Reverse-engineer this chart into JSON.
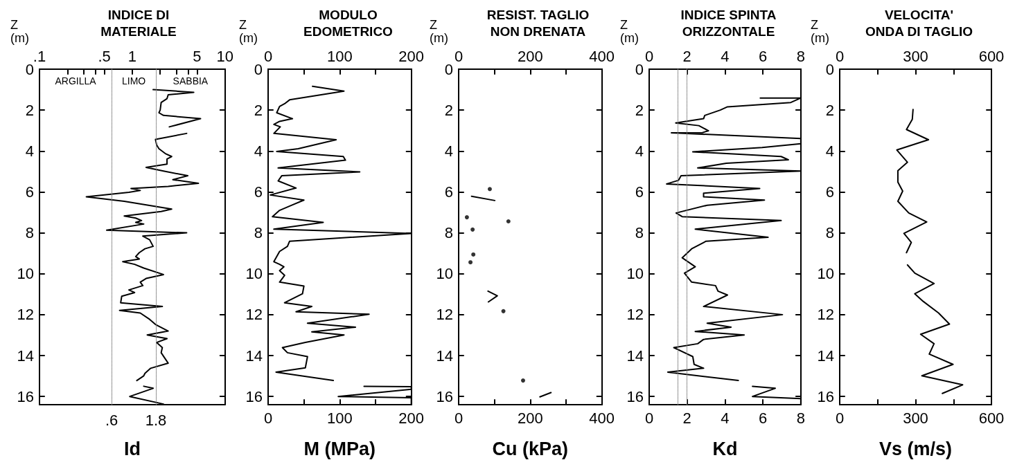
{
  "chart_data": [
    {
      "type": "line",
      "title": "INDICE DI\nMATERIALE",
      "xlabel": "Id",
      "ylabel": "Z\n(m)",
      "log": "x",
      "line_style": "solid",
      "marker": "none",
      "xlim": [
        0.1,
        10
      ],
      "xticks": [
        {
          "value": 0.1,
          "label": ".1"
        },
        {
          "value": 0.2,
          "label": null
        },
        {
          "value": 0.3,
          "label": null
        },
        {
          "value": 0.4,
          "label": null
        },
        {
          "value": 0.5,
          "label": ".5"
        },
        1,
        {
          "value": 2,
          "label": null
        },
        {
          "value": 3,
          "label": null
        },
        {
          "value": 4,
          "label": null
        },
        5,
        10
      ],
      "ylim": [
        16.4,
        0
      ],
      "yticks": [
        0,
        2,
        4,
        6,
        8,
        10,
        12,
        14,
        16
      ],
      "ref_lines": [
        {
          "axis": "x",
          "value": 0.6,
          "label": ".6",
          "color": "#808080",
          "line_style": "dotted"
        },
        {
          "axis": "x",
          "value": 1.8,
          "label": "1.8",
          "color": "#808080",
          "line_style": "dotted"
        }
      ],
      "annotations": [
        "ARGILLA",
        "LIMO",
        "SABBIA"
      ],
      "series": [
        {
          "color": "#000000",
          "x": [
            1.68,
            4.6,
            2.44,
            2.37,
            2.05,
            2.0,
            1.94,
            2.17,
            5.45,
            2.51,
            null,
            3.86,
            1.78,
            1.83,
            1.94,
            2.3,
            2.66,
            2.37,
            2.37,
            1.41,
            2.17,
            3.97,
            2.74,
            5.17,
            2.44,
            0.97,
            1.22,
            0.92,
            0.32,
            0.82,
            2.66,
            2.05,
            0.82,
            1.09,
            1.26,
            1.09,
            1.33,
            0.53,
            3.86,
            1.3,
            1.54,
            1.68,
            1.37,
            1.19,
            1.09,
            1.19,
            0.79,
            1.06,
            1.33,
            2.17,
            1.41,
            1.22,
            1.3,
            0.92,
            1.06,
            0.77,
            0.75,
            2.11,
            0.73,
            1.22,
            1.54,
            1.78,
            2.44,
            1.45,
            2.37,
            1.83,
            2.11,
            2.05,
            2.24,
            2.44,
            1.58,
            1.37,
            1.33,
            1.12,
            null,
            1.33,
            1.68,
            0.94,
            2.17
          ],
          "values": [
            1.0,
            1.13,
            1.25,
            1.44,
            1.63,
            2.0,
            2.13,
            2.26,
            2.42,
            2.82,
            null,
            3.14,
            3.43,
            3.7,
            3.89,
            4.14,
            4.27,
            4.39,
            4.64,
            4.8,
            4.98,
            5.21,
            5.4,
            5.58,
            5.73,
            5.83,
            5.93,
            6.02,
            6.24,
            6.46,
            6.84,
            6.96,
            7.18,
            7.28,
            7.4,
            7.49,
            7.57,
            7.87,
            8.0,
            8.16,
            8.34,
            8.66,
            8.78,
            8.97,
            9.16,
            9.28,
            9.41,
            9.54,
            9.72,
            10.04,
            10.23,
            10.41,
            10.58,
            10.79,
            10.92,
            11.1,
            11.42,
            11.6,
            11.79,
            11.92,
            12.23,
            12.48,
            12.8,
            12.99,
            13.17,
            13.36,
            13.61,
            13.86,
            14.12,
            14.37,
            14.62,
            14.87,
            14.99,
            15.22,
            null,
            15.5,
            15.6,
            16.0,
            16.37
          ]
        }
      ]
    },
    {
      "type": "line",
      "title": "MODULO\nEDOMETRICO",
      "xlabel": "M (MPa)",
      "ylabel": "Z\n(m)",
      "line_style": "solid",
      "marker": "none",
      "xlim": [
        0,
        200
      ],
      "xticks": [
        0,
        {
          "value": 50,
          "label": null
        },
        100,
        {
          "value": 150,
          "label": null
        },
        200
      ],
      "x2lim": [
        0,
        200
      ],
      "x2ticks": [
        0,
        {
          "value": 50,
          "label": null
        },
        100,
        {
          "value": 150,
          "label": null
        },
        200
      ],
      "ylim": [
        16.4,
        0
      ],
      "yticks": [
        0,
        2,
        4,
        6,
        8,
        10,
        12,
        14,
        16
      ],
      "series": [
        {
          "color": "#000000",
          "x": [
            62,
            106,
            30,
            23,
            16,
            12,
            34,
            16,
            8,
            17,
            8,
            95,
            42,
            12,
            105,
            108,
            14,
            128,
            19,
            14,
            39,
            3,
            50,
            33,
            16,
            6,
            77,
            8,
            200,
            30,
            27,
            16,
            8,
            16,
            22,
            16,
            23,
            16,
            50,
            48,
            23,
            61,
            39,
            141,
            55,
            122,
            61,
            106,
            52,
            20,
            27,
            55,
            52,
            11,
            91,
            null,
            134,
            200,
            200,
            98,
            200,
            200
          ],
          "values": [
            0.84,
            1.07,
            1.5,
            1.69,
            1.82,
            2.13,
            2.42,
            2.55,
            2.7,
            2.82,
            3.14,
            3.45,
            3.89,
            4.02,
            4.27,
            4.45,
            4.83,
            5.02,
            5.21,
            5.46,
            5.81,
            6.15,
            6.4,
            6.65,
            6.9,
            7.21,
            7.49,
            7.82,
            8.03,
            8.41,
            8.66,
            8.91,
            9.41,
            9.54,
            9.66,
            9.85,
            10.08,
            10.41,
            10.6,
            10.98,
            11.42,
            11.6,
            11.86,
            11.98,
            12.42,
            12.61,
            12.84,
            12.99,
            13.36,
            13.61,
            13.86,
            14.05,
            14.6,
            14.81,
            15.22,
            null,
            15.5,
            15.52,
            15.65,
            16.0,
            16.06,
            16.37
          ]
        }
      ]
    },
    {
      "type": "line",
      "title": "RESIST. TAGLIO\nNON DRENATA",
      "xlabel": "Cu (kPa)",
      "ylabel": "Z\n(m)",
      "line_style": "solid",
      "marker": "none",
      "xlim": [
        0,
        400
      ],
      "xticks": [
        0,
        {
          "value": 100,
          "label": null
        },
        200,
        {
          "value": 300,
          "label": null
        },
        400
      ],
      "x2lim": [
        0,
        400
      ],
      "x2ticks": [
        0,
        {
          "value": 100,
          "label": null
        },
        200,
        {
          "value": 300,
          "label": null
        },
        400
      ],
      "ylim": [
        16.4,
        0
      ],
      "yticks": [
        0,
        2,
        4,
        6,
        8,
        10,
        12,
        14,
        16
      ],
      "series": [
        {
          "type": "scatter",
          "marker": "circle",
          "color": "#000000",
          "x": [
            87,
            23,
            139,
            39,
            41,
            33,
            125,
            180
          ],
          "values": [
            5.86,
            7.24,
            7.44,
            7.84,
            9.06,
            9.44,
            11.83,
            15.22
          ]
        },
        {
          "color": "#000000",
          "x": [
            36,
            101,
            null,
            82,
            108,
            83,
            null,
            227,
            258
          ],
          "values": [
            6.21,
            6.42,
            null,
            10.85,
            11.08,
            11.38,
            null,
            16.02,
            15.81
          ]
        }
      ]
    },
    {
      "type": "line",
      "title": "INDICE SPINTA\nORIZZONTALE",
      "xlabel": "Kd",
      "ylabel": "Z\n(m)",
      "line_style": "solid",
      "marker": "none",
      "xlim": [
        0,
        8
      ],
      "xticks": [
        0,
        2,
        4,
        6,
        8
      ],
      "x2lim": [
        0,
        8
      ],
      "x2ticks": [
        0,
        2,
        4,
        6,
        8
      ],
      "ylim": [
        16.4,
        0
      ],
      "yticks": [
        0,
        2,
        4,
        6,
        8,
        10,
        12,
        14,
        16
      ],
      "ref_lines": [
        {
          "axis": "x",
          "value": 1.5,
          "color": "#808080",
          "line_style": "dotted"
        },
        {
          "axis": "x",
          "value": 2,
          "color": "#808080",
          "line_style": "dotted"
        }
      ],
      "series": [
        {
          "color": "#000000",
          "x": [
            5.86,
            8,
            7.47,
            4.13,
            3.75,
            2.93,
            2.87,
            1.4,
            2.62,
            3.13,
            2.81,
            1.17,
            8,
            8,
            5.96,
            2.3,
            6.96,
            7.34,
            4.07,
            2.56,
            8,
            1.68,
            1.55,
            0.92,
            5.83,
            2.87,
            2.87,
            6.08,
            3.06,
            1.42,
            1.74,
            6.96,
            2.43,
            6.27,
            3.0,
            2.24,
            1.74,
            2.43,
            1.86,
            2.24,
            3.5,
            3.63,
            4.13,
            2.87,
            7.03,
            3.06,
            4.32,
            2.43,
            5.01,
            2.87,
            2.56,
            1.3,
            2.3,
            2.37,
            2.87,
            0.98,
            4.7,
            null,
            5.45,
            6.65,
            5.45,
            8,
            8
          ],
          "values": [
            1.41,
            1.41,
            1.63,
            1.84,
            2.0,
            2.26,
            2.42,
            2.63,
            2.76,
            3.01,
            3.1,
            3.11,
            3.39,
            3.64,
            3.83,
            4.04,
            4.27,
            4.43,
            4.6,
            4.83,
            4.98,
            5.21,
            5.43,
            5.61,
            5.83,
            6.06,
            6.24,
            6.4,
            6.65,
            7.03,
            7.21,
            7.4,
            7.82,
            8.22,
            8.41,
            8.78,
            9.22,
            9.66,
            9.97,
            10.41,
            10.58,
            10.85,
            11.04,
            11.6,
            12.0,
            12.42,
            12.61,
            12.82,
            12.99,
            13.21,
            13.42,
            13.61,
            14.05,
            14.43,
            14.62,
            14.81,
            15.22,
            null,
            15.5,
            15.6,
            16.0,
            16.1,
            16.37
          ]
        }
      ]
    },
    {
      "type": "line",
      "title": "VELOCITA'\nONDA DI TAGLIO",
      "xlabel": "Vs (m/s)",
      "ylabel": "Z\n(m)",
      "line_style": "solid",
      "marker": "none",
      "xlim": [
        0,
        600
      ],
      "xticks": [
        0,
        {
          "value": 150,
          "label": null
        },
        300,
        {
          "value": 450,
          "label": null
        },
        600
      ],
      "x2lim": [
        0,
        600
      ],
      "x2ticks": [
        0,
        {
          "value": 150,
          "label": null
        },
        300,
        {
          "value": 450,
          "label": null
        },
        600
      ],
      "ylim": [
        16.4,
        0
      ],
      "yticks": [
        0,
        2,
        4,
        6,
        8,
        10,
        12,
        14,
        16
      ],
      "series": [
        {
          "color": "#000000",
          "x": [
            290,
            287,
            264,
            351,
            226,
            268,
            230,
            230,
            249,
            230,
            273,
            344,
            254,
            283,
            264,
            null,
            268,
            297,
            373,
            297,
            330,
            391,
            434,
            320,
            373,
            354,
            448,
            325,
            486,
            406
          ],
          "values": [
            1.97,
            2.45,
            2.95,
            3.45,
            3.95,
            4.55,
            4.96,
            5.52,
            5.96,
            6.46,
            7.03,
            7.47,
            8.03,
            8.47,
            8.97,
            null,
            9.57,
            9.97,
            10.48,
            10.98,
            11.35,
            11.92,
            12.46,
            12.96,
            13.42,
            13.93,
            14.43,
            14.99,
            15.43,
            15.85
          ]
        }
      ]
    }
  ]
}
